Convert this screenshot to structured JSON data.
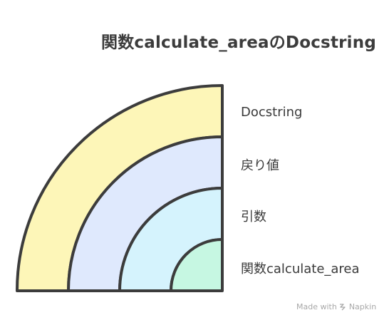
{
  "title": "関数calculate_areaのDocstring",
  "layers": [
    {
      "label": "Docstring",
      "color": "#fdf6b8"
    },
    {
      "label": "戻り値",
      "color": "#dfe9fd"
    },
    {
      "label": "引数",
      "color": "#d5f3fd"
    },
    {
      "label": "関数calculate_area",
      "color": "#c6f7e2"
    }
  ],
  "footer": {
    "made_with": "Made with",
    "brand": "Napkin",
    "brand_icon": "napkin-logo-icon"
  },
  "stroke_color": "#3c3c3c"
}
